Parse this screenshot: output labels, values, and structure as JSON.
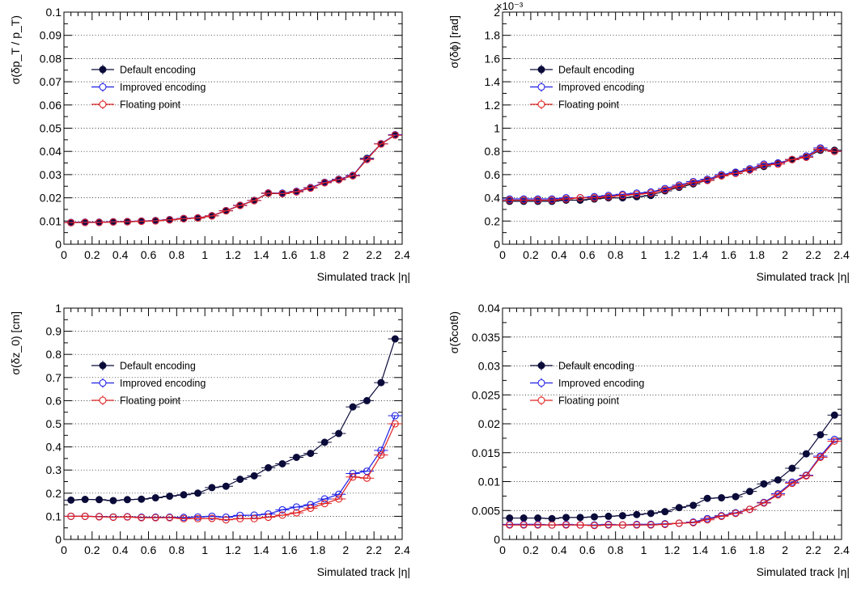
{
  "legend": {
    "default": "Default encoding",
    "improved": "Improved encoding",
    "floating": "Floating point"
  },
  "colors": {
    "default": "#0b0b3a",
    "improved": "#1f1fe6",
    "floating": "#e02020"
  },
  "chart_data": [
    {
      "type": "line",
      "ylabel": "σ(δp_T / p_T)",
      "xlabel": "Simulated track |η|",
      "xlim": [
        0,
        2.4
      ],
      "ylim": [
        0,
        0.1
      ],
      "grid": "horizontal dotted",
      "legend_position": "upper-left",
      "x": [
        0.05,
        0.15,
        0.25,
        0.35,
        0.45,
        0.55,
        0.65,
        0.75,
        0.85,
        0.95,
        1.05,
        1.15,
        1.25,
        1.35,
        1.45,
        1.55,
        1.65,
        1.75,
        1.85,
        1.95,
        2.05,
        2.15,
        2.25,
        2.35
      ],
      "series": [
        {
          "name": "Default encoding",
          "values": [
            0.0093,
            0.0094,
            0.0094,
            0.0096,
            0.0097,
            0.0099,
            0.0101,
            0.0105,
            0.011,
            0.0113,
            0.0122,
            0.0144,
            0.0167,
            0.0188,
            0.0219,
            0.0218,
            0.0226,
            0.0242,
            0.0265,
            0.0278,
            0.0295,
            0.037,
            0.0432,
            0.047
          ]
        },
        {
          "name": "Improved encoding",
          "values": [
            0.0094,
            0.0095,
            0.0095,
            0.0097,
            0.0098,
            0.01,
            0.0102,
            0.0106,
            0.0111,
            0.0114,
            0.0123,
            0.0145,
            0.0168,
            0.0189,
            0.0221,
            0.022,
            0.0228,
            0.0244,
            0.0267,
            0.028,
            0.0297,
            0.0367,
            0.0433,
            0.0472
          ]
        },
        {
          "name": "Floating point",
          "values": [
            0.0093,
            0.0094,
            0.0094,
            0.0096,
            0.0097,
            0.0099,
            0.0101,
            0.0105,
            0.011,
            0.0113,
            0.0122,
            0.0144,
            0.0167,
            0.0188,
            0.022,
            0.0218,
            0.0226,
            0.0242,
            0.0265,
            0.0278,
            0.0295,
            0.0365,
            0.0432,
            0.047
          ]
        }
      ]
    },
    {
      "type": "line",
      "ylabel": "σ(δϕ) [rad]",
      "xlabel": "Simulated track |η|",
      "xlim": [
        0,
        2.4
      ],
      "ylim": [
        0,
        2
      ],
      "multiplier": "×10⁻³",
      "grid": "horizontal dotted",
      "legend_position": "upper-left",
      "x": [
        0.05,
        0.15,
        0.25,
        0.35,
        0.45,
        0.55,
        0.65,
        0.75,
        0.85,
        0.95,
        1.05,
        1.15,
        1.25,
        1.35,
        1.45,
        1.55,
        1.65,
        1.75,
        1.85,
        1.95,
        2.05,
        2.15,
        2.25,
        2.35
      ],
      "series": [
        {
          "name": "Default encoding",
          "values": [
            0.37,
            0.37,
            0.37,
            0.37,
            0.38,
            0.38,
            0.39,
            0.4,
            0.4,
            0.41,
            0.42,
            0.46,
            0.49,
            0.52,
            0.55,
            0.59,
            0.62,
            0.64,
            0.67,
            0.7,
            0.73,
            0.75,
            0.81,
            0.81
          ]
        },
        {
          "name": "Improved encoding",
          "values": [
            0.39,
            0.39,
            0.39,
            0.39,
            0.4,
            0.4,
            0.41,
            0.42,
            0.43,
            0.44,
            0.45,
            0.48,
            0.51,
            0.54,
            0.56,
            0.6,
            0.62,
            0.65,
            0.69,
            0.7,
            0.73,
            0.76,
            0.83,
            0.8
          ]
        },
        {
          "name": "Floating point",
          "values": [
            0.38,
            0.38,
            0.38,
            0.38,
            0.39,
            0.4,
            0.4,
            0.41,
            0.42,
            0.43,
            0.44,
            0.47,
            0.5,
            0.53,
            0.55,
            0.59,
            0.61,
            0.64,
            0.68,
            0.69,
            0.73,
            0.75,
            0.82,
            0.8
          ]
        }
      ]
    },
    {
      "type": "line",
      "ylabel": "σ(δz_0) [cm]",
      "xlabel": "Simulated track |η|",
      "xlim": [
        0,
        2.4
      ],
      "ylim": [
        0,
        1
      ],
      "grid": "horizontal dotted",
      "legend_position": "upper-left",
      "x": [
        0.05,
        0.15,
        0.25,
        0.35,
        0.45,
        0.55,
        0.65,
        0.75,
        0.85,
        0.95,
        1.05,
        1.15,
        1.25,
        1.35,
        1.45,
        1.55,
        1.65,
        1.75,
        1.85,
        1.95,
        2.05,
        2.15,
        2.25,
        2.35
      ],
      "series": [
        {
          "name": "Default encoding",
          "values": [
            0.17,
            0.173,
            0.172,
            0.168,
            0.172,
            0.174,
            0.18,
            0.187,
            0.193,
            0.2,
            0.224,
            0.23,
            0.26,
            0.275,
            0.31,
            0.327,
            0.355,
            0.372,
            0.42,
            0.458,
            0.573,
            0.6,
            0.678,
            0.867
          ]
        },
        {
          "name": "Improved encoding",
          "values": [
            0.1,
            0.1,
            0.099,
            0.097,
            0.098,
            0.096,
            0.096,
            0.096,
            0.095,
            0.097,
            0.1,
            0.096,
            0.104,
            0.105,
            0.11,
            0.128,
            0.14,
            0.15,
            0.175,
            0.195,
            0.285,
            0.295,
            0.385,
            0.535
          ]
        },
        {
          "name": "Floating point",
          "values": [
            0.1,
            0.1,
            0.098,
            0.096,
            0.097,
            0.094,
            0.094,
            0.094,
            0.09,
            0.09,
            0.091,
            0.085,
            0.09,
            0.09,
            0.096,
            0.105,
            0.115,
            0.135,
            0.155,
            0.175,
            0.27,
            0.265,
            0.365,
            0.5
          ]
        }
      ]
    },
    {
      "type": "line",
      "ylabel": "σ(δcotθ)",
      "xlabel": "Simulated track |η|",
      "xlim": [
        0,
        2.4
      ],
      "ylim": [
        0,
        0.04
      ],
      "grid": "horizontal dotted",
      "legend_position": "upper-left",
      "x": [
        0.05,
        0.15,
        0.25,
        0.35,
        0.45,
        0.55,
        0.65,
        0.75,
        0.85,
        0.95,
        1.05,
        1.15,
        1.25,
        1.35,
        1.45,
        1.55,
        1.65,
        1.75,
        1.85,
        1.95,
        2.05,
        2.15,
        2.25,
        2.35
      ],
      "series": [
        {
          "name": "Default encoding",
          "values": [
            0.0037,
            0.0037,
            0.0037,
            0.0036,
            0.0038,
            0.0038,
            0.0039,
            0.004,
            0.0041,
            0.0043,
            0.0045,
            0.0048,
            0.0055,
            0.0059,
            0.0071,
            0.0072,
            0.0074,
            0.0083,
            0.0096,
            0.0103,
            0.0123,
            0.0148,
            0.0181,
            0.0215
          ]
        },
        {
          "name": "Improved encoding",
          "values": [
            0.0026,
            0.0026,
            0.0026,
            0.0025,
            0.0026,
            0.0025,
            0.0025,
            0.0026,
            0.0025,
            0.0026,
            0.0026,
            0.0027,
            0.0028,
            0.003,
            0.0036,
            0.0041,
            0.0046,
            0.0052,
            0.0064,
            0.0079,
            0.0099,
            0.0111,
            0.0144,
            0.0173
          ]
        },
        {
          "name": "Floating point",
          "values": [
            0.0025,
            0.0025,
            0.0025,
            0.0025,
            0.0025,
            0.0025,
            0.0024,
            0.0025,
            0.0025,
            0.0025,
            0.0025,
            0.0026,
            0.0028,
            0.0029,
            0.0034,
            0.004,
            0.0045,
            0.0052,
            0.0063,
            0.0077,
            0.0097,
            0.011,
            0.0142,
            0.017
          ]
        }
      ]
    }
  ]
}
